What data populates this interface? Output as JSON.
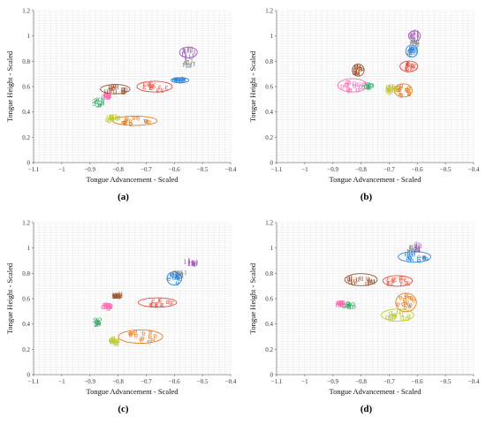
{
  "chart_data": [
    {
      "type": "scatter",
      "panel_label": "(a)",
      "xlabel": "Tongue Advancement - Scaled",
      "ylabel": "Tongue Height - Scaled",
      "xlim": [
        -1.1,
        -0.4
      ],
      "ylim": [
        0,
        1.2
      ],
      "xticks": [
        "−1.1",
        "−1",
        "−0.9",
        "−0.8",
        "−0.7",
        "−0.6",
        "−0.5",
        "−0.4"
      ],
      "yticks": [
        "0",
        "0.2",
        "0.4",
        "0.6",
        "0.8",
        "1",
        "1.2"
      ],
      "grid": true,
      "series": [
        {
          "label": "i",
          "color": "#9b59b6",
          "x": -0.55,
          "y": 0.87,
          "rx": 0.03,
          "ry": 0.04,
          "ellipse": true
        },
        {
          "label": "ɪ",
          "color": "#8c8c8c",
          "x": -0.55,
          "y": 0.79,
          "rx": 0.025,
          "ry": 0.03,
          "ellipse": false
        },
        {
          "label": "e",
          "color": "#2e86de",
          "x": -0.58,
          "y": 0.65,
          "rx": 0.03,
          "ry": 0.02,
          "ellipse": true
        },
        {
          "label": "ɛ",
          "color": "#e74c3c",
          "x": -0.67,
          "y": 0.6,
          "rx": 0.06,
          "ry": 0.04,
          "ellipse": true
        },
        {
          "label": "ɐ",
          "color": "#e67e22",
          "x": -0.74,
          "y": 0.33,
          "rx": 0.075,
          "ry": 0.035,
          "ellipse": true
        },
        {
          "label": "ɑ",
          "color": "#c0ca33",
          "x": -0.82,
          "y": 0.35,
          "rx": 0.03,
          "ry": 0.03,
          "ellipse": false
        },
        {
          "label": "ɔ",
          "color": "#27ae60",
          "x": -0.87,
          "y": 0.48,
          "rx": 0.025,
          "ry": 0.03,
          "ellipse": false
        },
        {
          "label": "ʊ",
          "color": "#ff69b4",
          "x": -0.84,
          "y": 0.53,
          "rx": 0.02,
          "ry": 0.02,
          "ellipse": false
        },
        {
          "label": "u",
          "color": "#a0522d",
          "x": -0.81,
          "y": 0.58,
          "rx": 0.05,
          "ry": 0.035,
          "ellipse": true
        }
      ]
    },
    {
      "type": "scatter",
      "panel_label": "(b)",
      "xlabel": "Tongue Advancement - Scaled",
      "ylabel": "Tongue Height - Scaled",
      "xlim": [
        -1.1,
        -0.4
      ],
      "ylim": [
        0,
        1.2
      ],
      "xticks": [
        "−1.1",
        "−1",
        "−0.9",
        "−0.8",
        "−0.7",
        "−0.6",
        "−0.5",
        "−0.4"
      ],
      "yticks": [
        "0",
        "0.2",
        "0.4",
        "0.6",
        "0.8",
        "1",
        "1.2"
      ],
      "grid": true,
      "series": [
        {
          "label": "i",
          "color": "#9b59b6",
          "x": -0.61,
          "y": 1.0,
          "rx": 0.02,
          "ry": 0.04,
          "ellipse": true
        },
        {
          "label": "ɪ",
          "color": "#8c8c8c",
          "x": -0.61,
          "y": 0.95,
          "rx": 0.025,
          "ry": 0.03,
          "ellipse": false
        },
        {
          "label": "e",
          "color": "#2e86de",
          "x": -0.62,
          "y": 0.88,
          "rx": 0.02,
          "ry": 0.045,
          "ellipse": true
        },
        {
          "label": "ɛ",
          "color": "#e74c3c",
          "x": -0.63,
          "y": 0.76,
          "rx": 0.03,
          "ry": 0.04,
          "ellipse": true
        },
        {
          "label": "ɐ",
          "color": "#e67e22",
          "x": -0.65,
          "y": 0.57,
          "rx": 0.03,
          "ry": 0.05,
          "ellipse": true
        },
        {
          "label": "ɑ",
          "color": "#c0ca33",
          "x": -0.69,
          "y": 0.58,
          "rx": 0.025,
          "ry": 0.04,
          "ellipse": false
        },
        {
          "label": "ɔ",
          "color": "#27ae60",
          "x": -0.78,
          "y": 0.61,
          "rx": 0.025,
          "ry": 0.02,
          "ellipse": false
        },
        {
          "label": "ʊ",
          "color": "#ff69b4",
          "x": -0.83,
          "y": 0.61,
          "rx": 0.05,
          "ry": 0.05,
          "ellipse": true
        },
        {
          "label": "u",
          "color": "#a0522d",
          "x": -0.81,
          "y": 0.73,
          "rx": 0.02,
          "ry": 0.045,
          "ellipse": true
        }
      ]
    },
    {
      "type": "scatter",
      "panel_label": "(c)",
      "xlabel": "Tongue Advancement - Scaled",
      "ylabel": "Tongue Height - Scaled",
      "xlim": [
        -1.1,
        -0.4
      ],
      "ylim": [
        0,
        1.2
      ],
      "xticks": [
        "−1.1",
        "−1",
        "−0.9",
        "−0.8",
        "−0.7",
        "−0.6",
        "−0.5",
        "−0.4"
      ],
      "yticks": [
        "0",
        "0.2",
        "0.4",
        "0.6",
        "0.8",
        "1",
        "1.2"
      ],
      "grid": true,
      "series": [
        {
          "label": "i",
          "color": "#9b59b6",
          "x": -0.54,
          "y": 0.89,
          "rx": 0.03,
          "ry": 0.02,
          "ellipse": false
        },
        {
          "label": "ɪ",
          "color": "#8c8c8c",
          "x": -0.58,
          "y": 0.8,
          "rx": 0.03,
          "ry": 0.03,
          "ellipse": false
        },
        {
          "label": "e",
          "color": "#2e86de",
          "x": -0.6,
          "y": 0.76,
          "rx": 0.025,
          "ry": 0.05,
          "ellipse": true
        },
        {
          "label": "ɛ",
          "color": "#e74c3c",
          "x": -0.66,
          "y": 0.57,
          "rx": 0.065,
          "ry": 0.035,
          "ellipse": true
        },
        {
          "label": "ɐ",
          "color": "#e67e22",
          "x": -0.72,
          "y": 0.3,
          "rx": 0.075,
          "ry": 0.05,
          "ellipse": true
        },
        {
          "label": "ɑ",
          "color": "#c0ca33",
          "x": -0.81,
          "y": 0.27,
          "rx": 0.02,
          "ry": 0.03,
          "ellipse": false
        },
        {
          "label": "ɔ",
          "color": "#27ae60",
          "x": -0.87,
          "y": 0.42,
          "rx": 0.02,
          "ry": 0.03,
          "ellipse": false
        },
        {
          "label": "ʊ",
          "color": "#ff69b4",
          "x": -0.84,
          "y": 0.54,
          "rx": 0.02,
          "ry": 0.03,
          "ellipse": false
        },
        {
          "label": "u",
          "color": "#a0522d",
          "x": -0.8,
          "y": 0.63,
          "rx": 0.025,
          "ry": 0.02,
          "ellipse": false
        }
      ]
    },
    {
      "type": "scatter",
      "panel_label": "(d)",
      "xlabel": "Tongue Advancement - Scaled",
      "ylabel": "Tongue Height - Scaled",
      "xlim": [
        -1.1,
        -0.4
      ],
      "ylim": [
        0,
        1.2
      ],
      "xticks": [
        "−1.1",
        "−1",
        "−0.9",
        "−0.8",
        "−0.7",
        "−0.6",
        "−0.5",
        "−0.4"
      ],
      "yticks": [
        "0",
        "0.2",
        "0.4",
        "0.6",
        "0.8",
        "1",
        "1.2"
      ],
      "grid": true,
      "series": [
        {
          "label": "i",
          "color": "#9b59b6",
          "x": -0.6,
          "y": 1.0,
          "rx": 0.02,
          "ry": 0.04,
          "ellipse": false
        },
        {
          "label": "ɪ",
          "color": "#8c8c8c",
          "x": -0.62,
          "y": 0.99,
          "rx": 0.025,
          "ry": 0.025,
          "ellipse": false
        },
        {
          "label": "e",
          "color": "#2e86de",
          "x": -0.61,
          "y": 0.93,
          "rx": 0.055,
          "ry": 0.04,
          "ellipse": true
        },
        {
          "label": "ɛ",
          "color": "#e74c3c",
          "x": -0.67,
          "y": 0.74,
          "rx": 0.05,
          "ry": 0.04,
          "ellipse": true
        },
        {
          "label": "ɐ",
          "color": "#e67e22",
          "x": -0.64,
          "y": 0.57,
          "rx": 0.035,
          "ry": 0.07,
          "ellipse": true
        },
        {
          "label": "ɑ",
          "color": "#c0ca33",
          "x": -0.67,
          "y": 0.47,
          "rx": 0.055,
          "ry": 0.045,
          "ellipse": true
        },
        {
          "label": "ɔ",
          "color": "#27ae60",
          "x": -0.84,
          "y": 0.55,
          "rx": 0.025,
          "ry": 0.025,
          "ellipse": false
        },
        {
          "label": "ʊ",
          "color": "#ff69b4",
          "x": -0.87,
          "y": 0.56,
          "rx": 0.02,
          "ry": 0.02,
          "ellipse": false
        },
        {
          "label": "u",
          "color": "#a0522d",
          "x": -0.8,
          "y": 0.75,
          "rx": 0.055,
          "ry": 0.045,
          "ellipse": true
        }
      ]
    }
  ]
}
